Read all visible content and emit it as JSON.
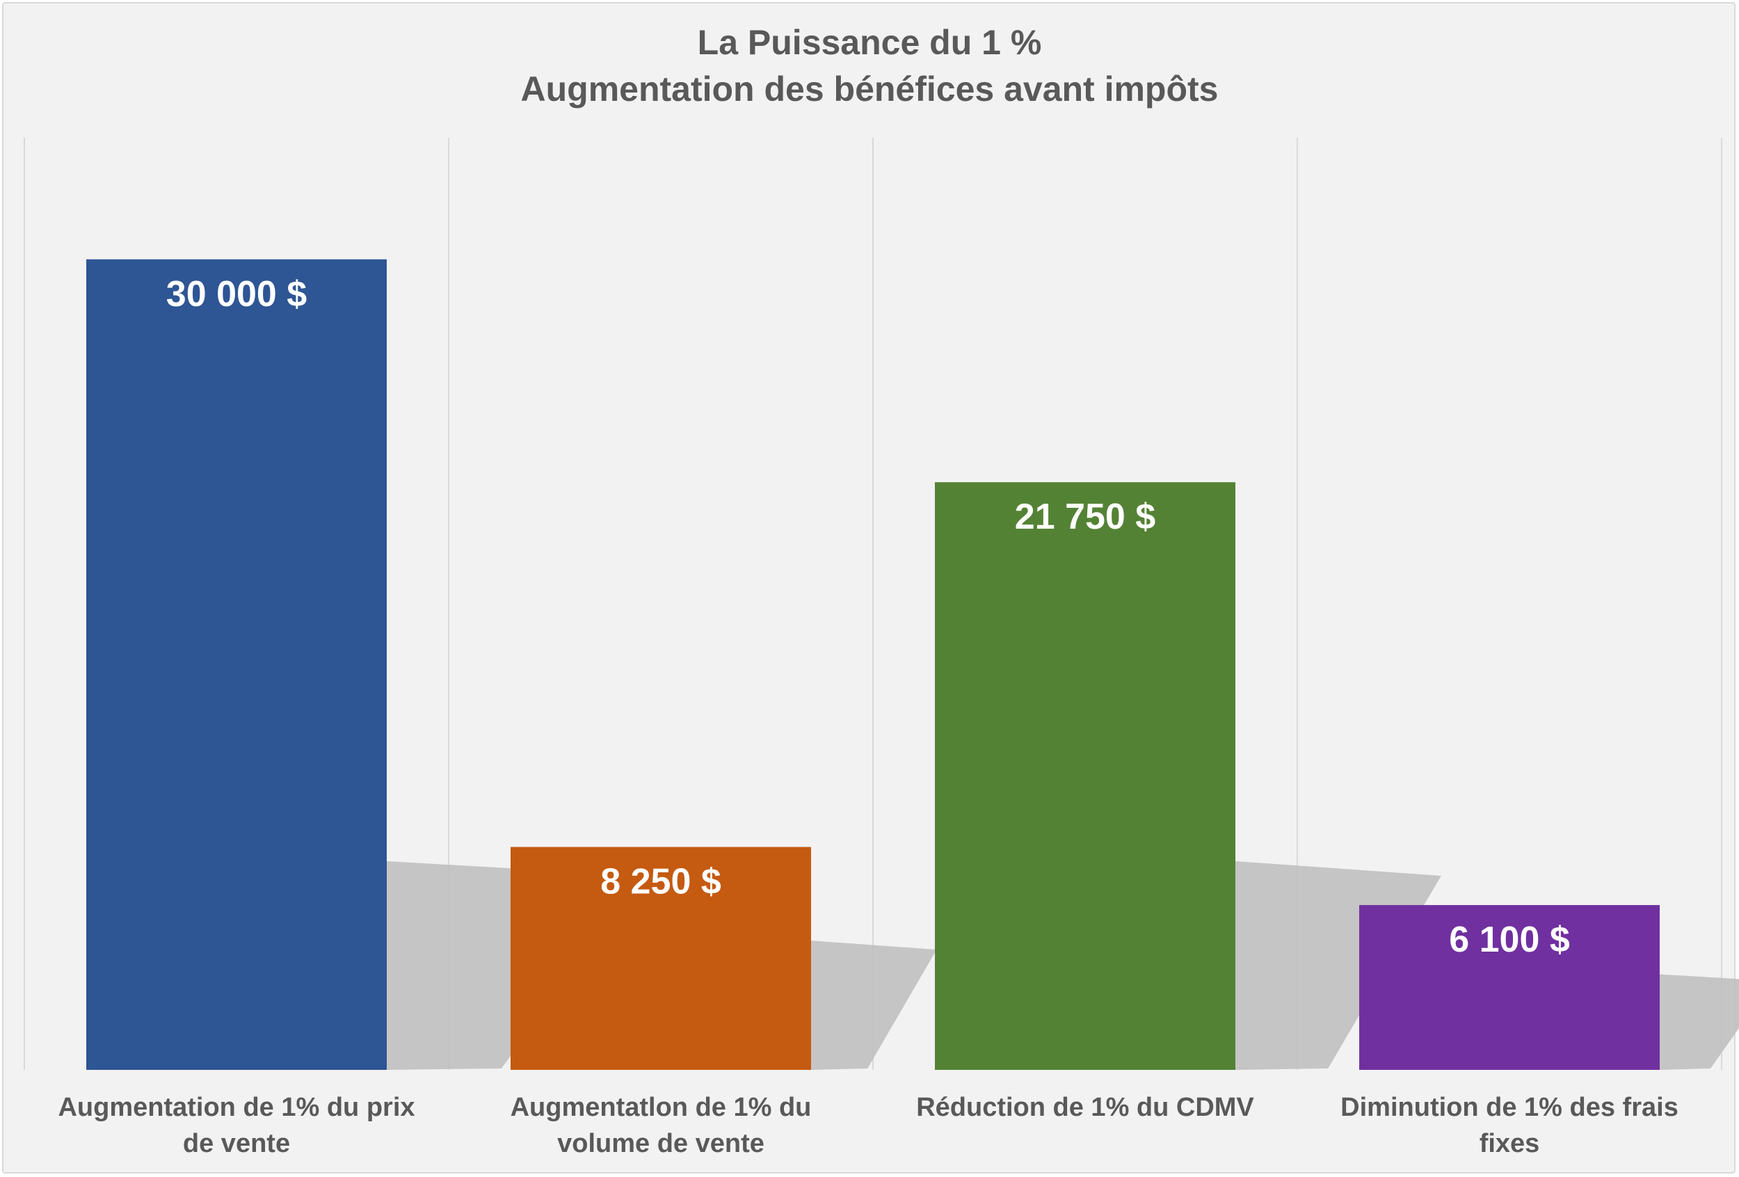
{
  "chart_data": {
    "type": "bar",
    "title": "La Puissance du 1 %",
    "subtitle": "Augmentation des bénéfices avant impôts",
    "categories": [
      [
        "Augmentation de 1% du prix",
        "de vente"
      ],
      [
        "Augmentatlon de 1% du",
        "volume de vente"
      ],
      [
        "Réduction de 1% du CDMV"
      ],
      [
        "Diminution de 1% des frais",
        "fixes"
      ]
    ],
    "values": [
      30000,
      8250,
      21750,
      6100
    ],
    "value_labels": [
      "30 000  $",
      "8 250  $",
      "21 750  $",
      "6 100  $"
    ],
    "colors": [
      "#2e5594",
      "#c55a11",
      "#548235",
      "#7030a0"
    ],
    "ylim": [
      0,
      34500
    ],
    "grid": "vertical separators",
    "legend": "none",
    "data_labels": "inside-top"
  }
}
